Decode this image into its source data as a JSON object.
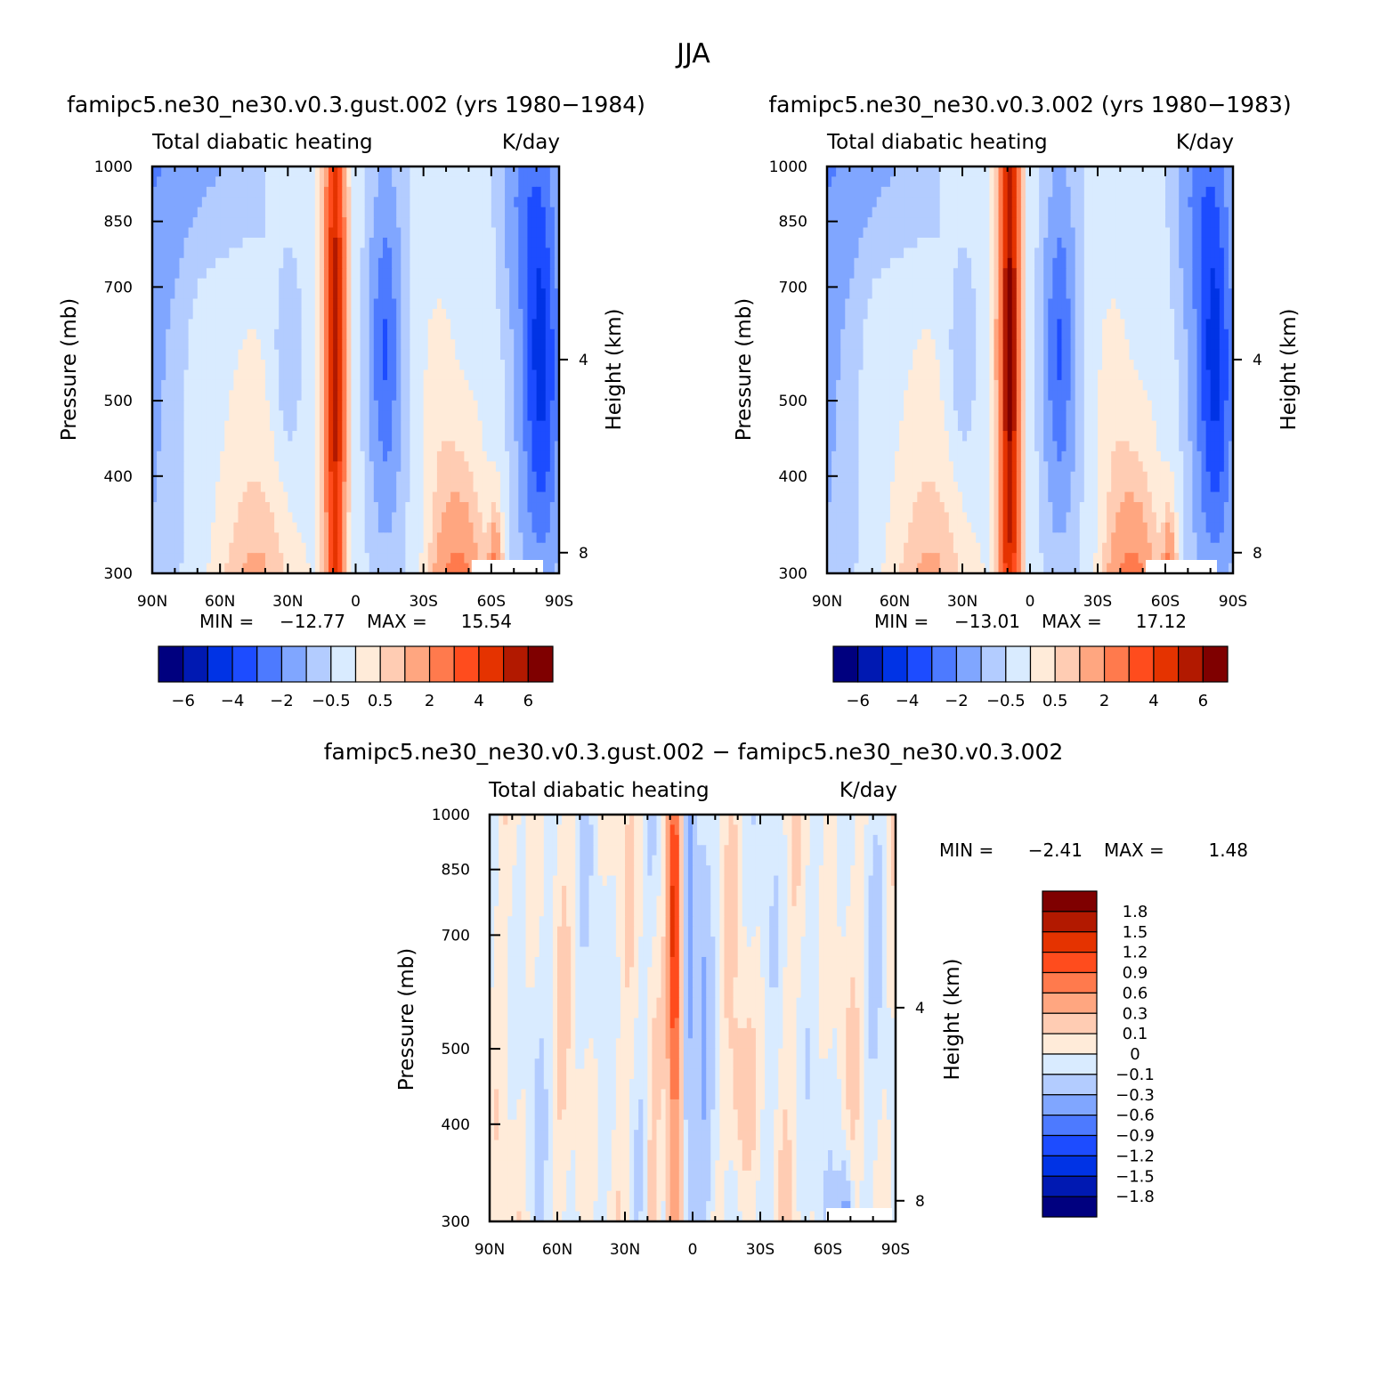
{
  "figure": {
    "title": "JJA"
  },
  "colors": {
    "blue_red_scale": [
      "#00007f",
      "#0019b2",
      "#0033e5",
      "#1d4cff",
      "#4d7aff",
      "#80a6ff",
      "#b3ccff",
      "#d9ebff",
      "#ffebd9",
      "#ffccb3",
      "#ffa680",
      "#ff7a4d",
      "#ff4c1d",
      "#e53300",
      "#b21900",
      "#7f0000"
    ],
    "axis": "#000000",
    "missing": "#ffffff"
  },
  "chart_data": [
    {
      "id": "panel_gust",
      "type": "heatmap",
      "title": "famipc5.ne30_ne30.v0.3.gust.002 (yrs 1980−1984)",
      "left_string": "Total diabatic heating",
      "right_string": "K/day",
      "ylabel": "Pressure (mb)",
      "ylabel_right": "Height (km)",
      "x_tick_labels": [
        "90N",
        "60N",
        "30N",
        "0",
        "30S",
        "60S",
        "90S"
      ],
      "x_ticks": [
        90,
        60,
        30,
        0,
        -30,
        -60,
        -90
      ],
      "xlim": [
        90,
        -90
      ],
      "y_tick_labels": [
        "300",
        "400",
        "500",
        "700",
        "850",
        "1000"
      ],
      "y_ticks": [
        300,
        400,
        500,
        700,
        850,
        1000
      ],
      "ylim": [
        1000,
        300
      ],
      "y_scale": "log",
      "height_tick_labels": [
        "8",
        "4"
      ],
      "height_ticks_km": [
        8,
        4
      ],
      "min_label": "MIN =",
      "min_value": "−12.77",
      "max_label": "MAX =",
      "max_value": "15.54",
      "colorbar_orientation": "horizontal",
      "colorbar_labels": [
        "−6",
        "−4",
        "−2",
        "−0.5",
        "0.5",
        "2",
        "4",
        "6"
      ],
      "colorbar_levels": [
        -6,
        -5,
        -4,
        -3,
        -2,
        -1,
        -0.5,
        0,
        0.5,
        1,
        2,
        3,
        4,
        5,
        6
      ],
      "variant": 0
    },
    {
      "id": "panel_control",
      "type": "heatmap",
      "title": "famipc5.ne30_ne30.v0.3.002 (yrs 1980−1983)",
      "left_string": "Total diabatic heating",
      "right_string": "K/day",
      "ylabel": "Pressure (mb)",
      "ylabel_right": "Height (km)",
      "x_tick_labels": [
        "90N",
        "60N",
        "30N",
        "0",
        "30S",
        "60S",
        "90S"
      ],
      "x_ticks": [
        90,
        60,
        30,
        0,
        -30,
        -60,
        -90
      ],
      "xlim": [
        90,
        -90
      ],
      "y_tick_labels": [
        "300",
        "400",
        "500",
        "700",
        "850",
        "1000"
      ],
      "y_ticks": [
        300,
        400,
        500,
        700,
        850,
        1000
      ],
      "ylim": [
        1000,
        300
      ],
      "y_scale": "log",
      "height_tick_labels": [
        "8",
        "4"
      ],
      "height_ticks_km": [
        8,
        4
      ],
      "min_label": "MIN =",
      "min_value": "−13.01",
      "max_label": "MAX =",
      "max_value": "17.12",
      "colorbar_orientation": "horizontal",
      "colorbar_labels": [
        "−6",
        "−4",
        "−2",
        "−0.5",
        "0.5",
        "2",
        "4",
        "6"
      ],
      "colorbar_levels": [
        -6,
        -5,
        -4,
        -3,
        -2,
        -1,
        -0.5,
        0,
        0.5,
        1,
        2,
        3,
        4,
        5,
        6
      ],
      "variant": 1
    },
    {
      "id": "panel_diff",
      "type": "heatmap",
      "title": "famipc5.ne30_ne30.v0.3.gust.002 − famipc5.ne30_ne30.v0.3.002",
      "left_string": "Total diabatic heating",
      "right_string": "K/day",
      "ylabel": "Pressure (mb)",
      "ylabel_right": "Height (km)",
      "x_tick_labels": [
        "90N",
        "60N",
        "30N",
        "0",
        "30S",
        "60S",
        "90S"
      ],
      "x_ticks": [
        90,
        60,
        30,
        0,
        -30,
        -60,
        -90
      ],
      "xlim": [
        90,
        -90
      ],
      "y_tick_labels": [
        "300",
        "400",
        "500",
        "700",
        "850",
        "1000"
      ],
      "y_ticks": [
        300,
        400,
        500,
        700,
        850,
        1000
      ],
      "ylim": [
        1000,
        300
      ],
      "y_scale": "log",
      "height_tick_labels": [
        "8",
        "4"
      ],
      "height_ticks_km": [
        8,
        4
      ],
      "min_label": "MIN =",
      "min_value": "−2.41",
      "max_label": "MAX =",
      "max_value": "1.48",
      "colorbar_orientation": "vertical",
      "colorbar_labels": [
        "1.8",
        "1.5",
        "1.2",
        "0.9",
        "0.6",
        "0.3",
        "0.1",
        "0",
        "−0.1",
        "−0.3",
        "−0.6",
        "−0.9",
        "−1.2",
        "−1.5",
        "−1.8"
      ],
      "colorbar_levels": [
        1.8,
        1.5,
        1.2,
        0.9,
        0.6,
        0.3,
        0.1,
        0,
        -0.1,
        -0.3,
        -0.6,
        -0.9,
        -1.2,
        -1.5,
        -1.8
      ]
    }
  ]
}
